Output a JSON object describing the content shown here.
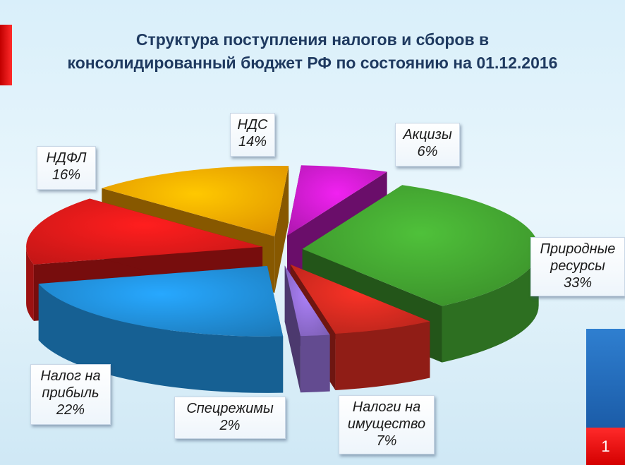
{
  "title": {
    "line1": "Структура поступления налогов и сборов в",
    "line2": "консолидированный бюджет РФ по состоянию на 01.12.2016"
  },
  "slide_number": "1",
  "colors": {
    "title": "#1f3a60",
    "natural_resources": "#3f9a2e",
    "property": "#c8281e",
    "special": "#8a68c8",
    "profit": "#1f86cc",
    "pit": "#d81818",
    "vat": "#f5a000",
    "excise": "#c11ac1"
  },
  "chart_data": {
    "type": "pie",
    "title": "Структура поступления налогов и сборов в консолидированный бюджет РФ по состоянию на 01.12.2016",
    "unit": "%",
    "slices": [
      {
        "name": "Природные ресурсы",
        "line1": "Природные",
        "line2": "ресурсы",
        "value": 33,
        "label": "33%",
        "color": "#3f9a2e"
      },
      {
        "name": "Налоги на имущество",
        "line1": "Налоги на",
        "line2": "имущество",
        "value": 7,
        "label": "7%",
        "color": "#c8281e"
      },
      {
        "name": "Спецрежимы",
        "line1": "Спецрежимы",
        "value": 2,
        "label": "2%",
        "color": "#8a68c8"
      },
      {
        "name": "Налог на прибыль",
        "line1": "Налог на",
        "line2": "прибыль",
        "value": 22,
        "label": "22%",
        "color": "#1f86cc"
      },
      {
        "name": "НДФЛ",
        "line1": "НДФЛ",
        "value": 16,
        "label": "16%",
        "color": "#d81818"
      },
      {
        "name": "НДС",
        "line1": "НДС",
        "value": 14,
        "label": "14%",
        "color": "#f5a000"
      },
      {
        "name": "Акцизы",
        "line1": "Акцизы",
        "value": 6,
        "label": "6%",
        "color": "#c11ac1"
      }
    ]
  }
}
